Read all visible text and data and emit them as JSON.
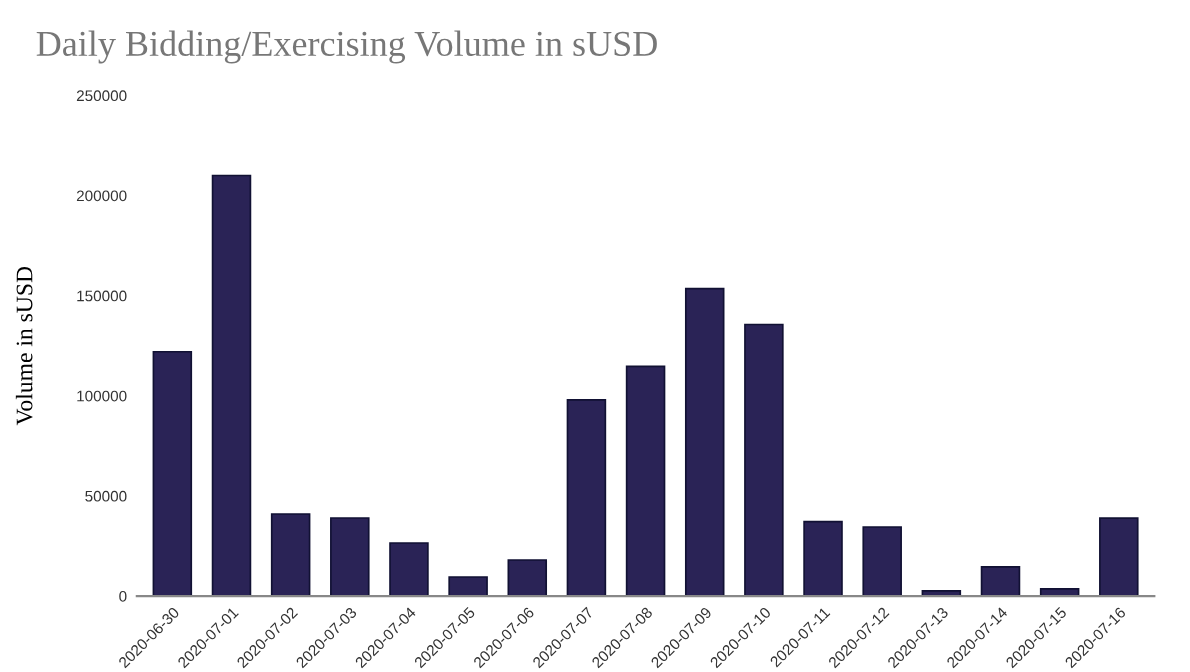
{
  "chart_data": {
    "type": "bar",
    "title": "Daily Bidding/Exercising Volume in sUSD",
    "ylabel": "Volume in sUSD",
    "categories": [
      "2020-06-30",
      "2020-07-01",
      "2020-07-02",
      "2020-07-03",
      "2020-07-04",
      "2020-07-05",
      "2020-07-06",
      "2020-07-07",
      "2020-07-08",
      "2020-07-09",
      "2020-07-10",
      "2020-07-11",
      "2020-07-12",
      "2020-07-13",
      "2020-07-14",
      "2020-07-15",
      "2020-07-16"
    ],
    "values": [
      122000,
      210000,
      41000,
      39000,
      26500,
      9500,
      18000,
      98000,
      114700,
      153500,
      135600,
      37200,
      34500,
      2600,
      14600,
      3600,
      38900
    ],
    "color": "#2a2356",
    "ylim": [
      0,
      250000
    ],
    "yticks": [
      0,
      50000,
      100000,
      150000,
      200000,
      250000
    ],
    "grid": false,
    "legend": false
  }
}
